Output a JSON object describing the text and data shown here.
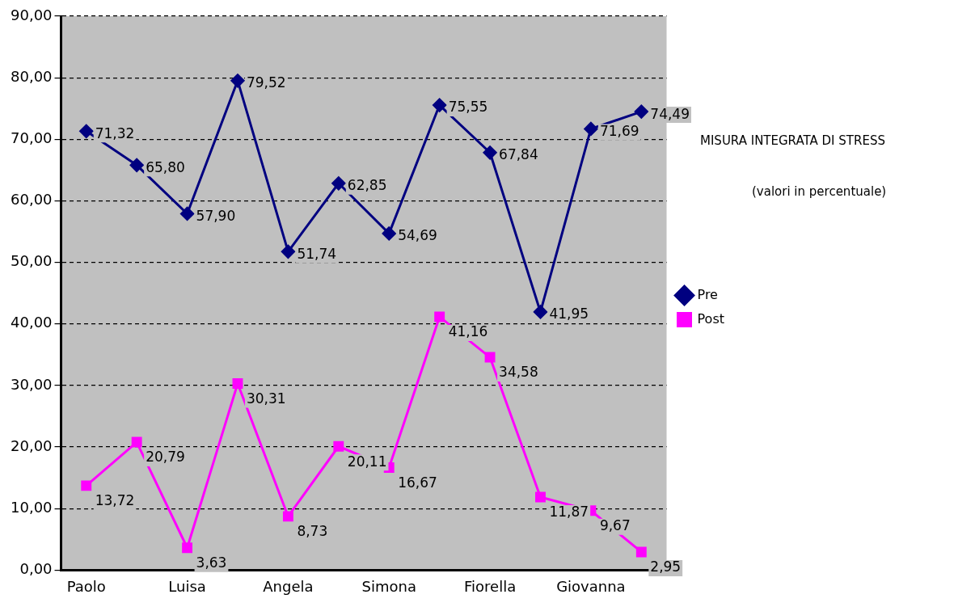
{
  "chart_data": {
    "type": "line",
    "title": "MISURA INTEGRATA DI STRESS",
    "subtitle": "(valori in percentuale)",
    "categories": [
      "Paolo",
      null,
      "Luisa",
      null,
      "Angela",
      null,
      "Simona",
      null,
      "Fiorella",
      null,
      "Giovanna",
      null
    ],
    "series": [
      {
        "name": "Pre",
        "color": "#000080",
        "marker": "diamond",
        "values": [
          71.32,
          65.8,
          57.9,
          79.52,
          51.74,
          62.85,
          54.69,
          75.55,
          67.84,
          41.95,
          71.69,
          74.49
        ],
        "value_labels": [
          "71,32",
          "65,80",
          "57,90",
          "79,52",
          "51,74",
          "62,85",
          "54,69",
          "75,55",
          "67,84",
          "41,95",
          "71,69",
          "74,49"
        ]
      },
      {
        "name": "Post",
        "color": "#ff00ff",
        "marker": "square",
        "values": [
          13.72,
          20.79,
          3.63,
          30.31,
          8.73,
          20.11,
          16.67,
          41.16,
          34.58,
          11.87,
          9.67,
          2.95
        ],
        "value_labels": [
          "13,72",
          "20,79",
          "3,63",
          "30,31",
          "8,73",
          "20,11",
          "16,67",
          "41,16",
          "34,58",
          "11,87",
          "9,67",
          "2,95"
        ]
      }
    ],
    "ylim": [
      0,
      90
    ],
    "yticks": [
      {
        "value": 0,
        "label": "0,00"
      },
      {
        "value": 10,
        "label": "10,00"
      },
      {
        "value": 20,
        "label": "20,00"
      },
      {
        "value": 30,
        "label": "30,00"
      },
      {
        "value": 40,
        "label": "40,00"
      },
      {
        "value": 50,
        "label": "50,00"
      },
      {
        "value": 60,
        "label": "60,00"
      },
      {
        "value": 70,
        "label": "70,00"
      },
      {
        "value": 80,
        "label": "80,00"
      },
      {
        "value": 90,
        "label": "90,00"
      }
    ],
    "grid": "y",
    "legend": "right",
    "line_style": "solid"
  }
}
